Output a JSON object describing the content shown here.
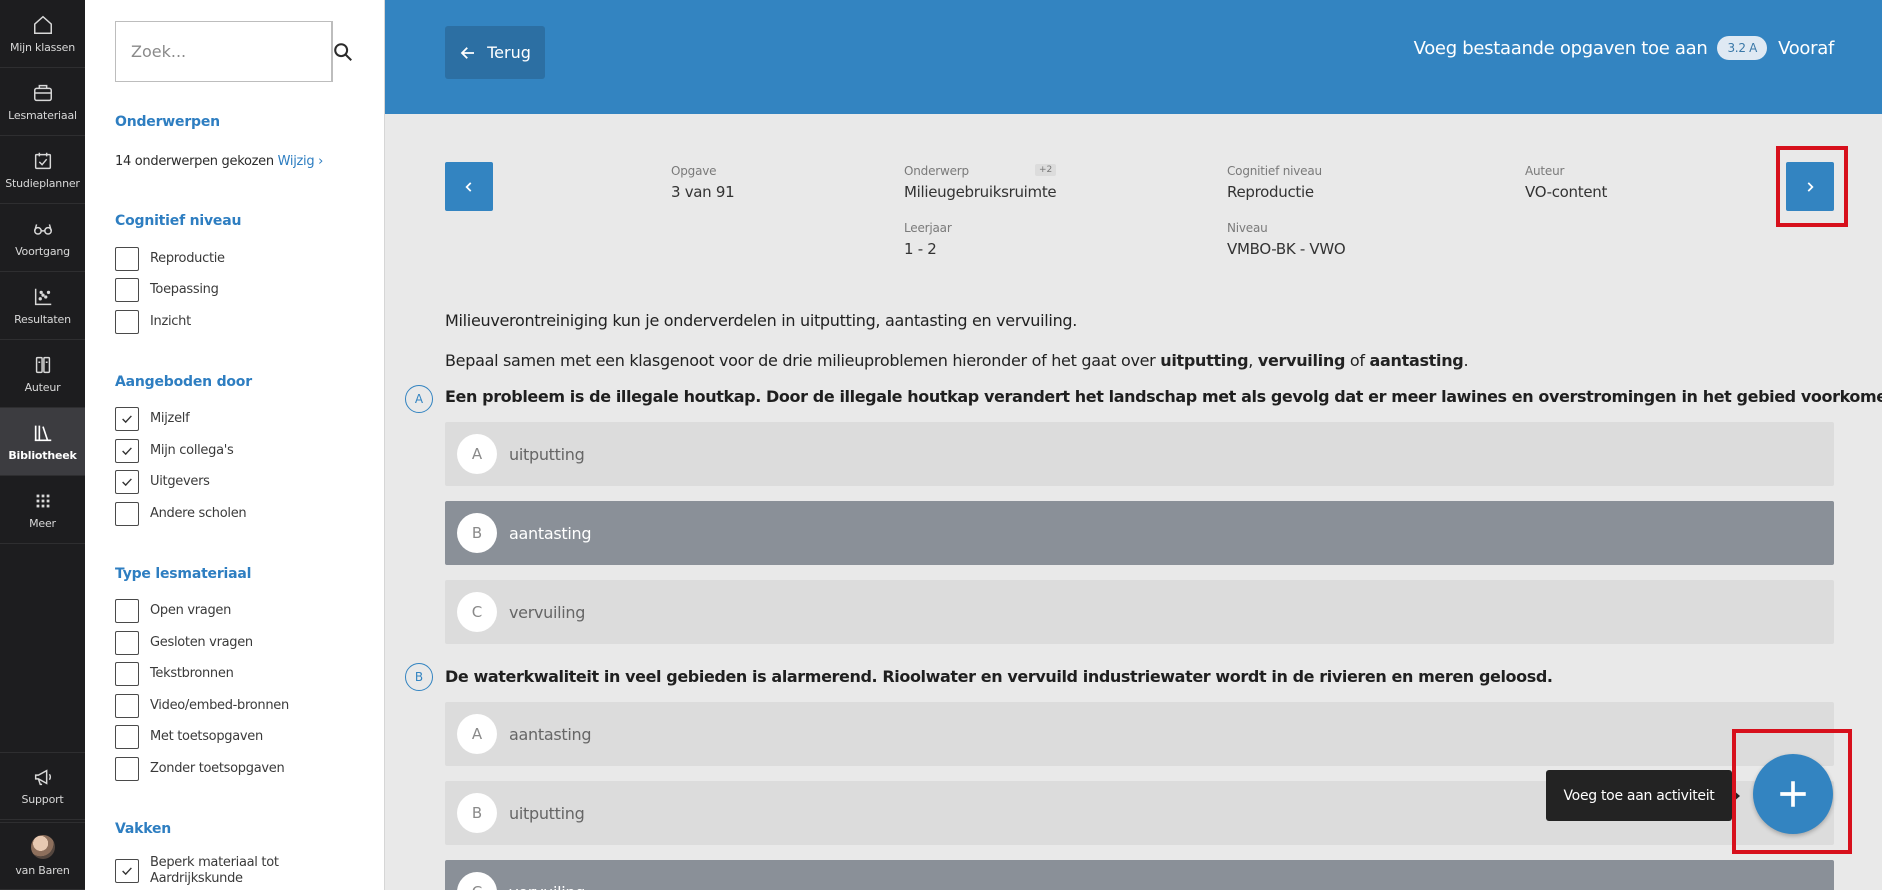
{
  "nav": {
    "items": [
      {
        "label": "Mijn klassen",
        "icon": "home-icon"
      },
      {
        "label": "Lesmateriaal",
        "icon": "briefcase-icon"
      },
      {
        "label": "Studieplanner",
        "icon": "calendar-check-icon"
      },
      {
        "label": "Voortgang",
        "icon": "glasses-icon"
      },
      {
        "label": "Resultaten",
        "icon": "scatter-chart-icon"
      },
      {
        "label": "Auteur",
        "icon": "author-icon"
      },
      {
        "label": "Bibliotheek",
        "icon": "library-icon",
        "active": true
      },
      {
        "label": "Meer",
        "icon": "grid-icon"
      }
    ],
    "support": "Support",
    "user": "van Baren"
  },
  "filters": {
    "search_placeholder": "Zoek...",
    "topics": {
      "heading": "Onderwerpen",
      "summary": "14 onderwerpen gekozen",
      "change": "Wijzig"
    },
    "cognitive": {
      "heading": "Cognitief niveau",
      "options": [
        {
          "label": "Reproductie",
          "checked": false
        },
        {
          "label": "Toepassing",
          "checked": false
        },
        {
          "label": "Inzicht",
          "checked": false
        }
      ]
    },
    "offered": {
      "heading": "Aangeboden door",
      "options": [
        {
          "label": "Mijzelf",
          "checked": true
        },
        {
          "label": "Mijn collega's",
          "checked": true
        },
        {
          "label": "Uitgevers",
          "checked": true
        },
        {
          "label": "Andere scholen",
          "checked": false
        }
      ]
    },
    "type": {
      "heading": "Type lesmateriaal",
      "options": [
        {
          "label": "Open vragen",
          "checked": false
        },
        {
          "label": "Gesloten vragen",
          "checked": false
        },
        {
          "label": "Tekstbronnen",
          "checked": false
        },
        {
          "label": "Video/embed-bronnen",
          "checked": false
        },
        {
          "label": "Met toetsopgaven",
          "checked": false
        },
        {
          "label": "Zonder toetsopgaven",
          "checked": false
        }
      ]
    },
    "subjects": {
      "heading": "Vakken",
      "options": [
        {
          "label_line1": "Beperk materiaal tot",
          "label_line2": "Aardrijkskunde",
          "checked": true
        }
      ]
    }
  },
  "header": {
    "back_label": "Terug",
    "title": "Voeg bestaande opgaven toe aan",
    "class_badge": "3.2 A",
    "target": "Vooraf"
  },
  "meta": {
    "exercise_label": "Opgave",
    "exercise_value": "3 van 91",
    "topic_label": "Onderwerp",
    "topic_value": "Milieugebruiksruimte",
    "topic_extra": "+2",
    "cognitive_label": "Cognitief niveau",
    "cognitive_value": "Reproductie",
    "author_label": "Auteur",
    "author_value": "VO-content",
    "year_label": "Leerjaar",
    "year_value": "1 - 2",
    "level_label": "Niveau",
    "level_value": "VMBO-BK - VWO"
  },
  "content": {
    "intro": "Milieuverontreiniging kun je onderverdelen in uitputting, aantasting en vervuiling.",
    "instruction_prefix": "Bepaal samen met een klasgenoot voor de drie milieuproblemen hieronder of het gaat over ",
    "instruction_term1": "uitputting",
    "instruction_sep": ", ",
    "instruction_term2": "vervuiling",
    "instruction_of": " of ",
    "instruction_term3": "aantasting",
    "instruction_end": ".",
    "questions": [
      {
        "marker": "A",
        "text": "Een probleem is de illegale houtkap. Door de illegale houtkap verandert het landschap met als gevolg dat er meer lawines en overstromingen in het gebied voorkomen.",
        "options": [
          {
            "letter": "A",
            "text": "uitputting",
            "selected": false
          },
          {
            "letter": "B",
            "text": "aantasting",
            "selected": true
          },
          {
            "letter": "C",
            "text": "vervuiling",
            "selected": false
          }
        ]
      },
      {
        "marker": "B",
        "text": "De waterkwaliteit in veel gebieden is alarmerend. Rioolwater en vervuild industriewater wordt in de rivieren en meren geloosd.",
        "options": [
          {
            "letter": "A",
            "text": "aantasting",
            "selected": false
          },
          {
            "letter": "B",
            "text": "uitputting",
            "selected": false
          },
          {
            "letter": "C",
            "text": "vervuiling",
            "selected": true
          }
        ]
      }
    ]
  },
  "fab": {
    "tooltip": "Voeg toe aan activiteit"
  },
  "colors": {
    "primary": "#3384c1",
    "highlight": "#d7101c",
    "selected_option": "#8a9098"
  }
}
